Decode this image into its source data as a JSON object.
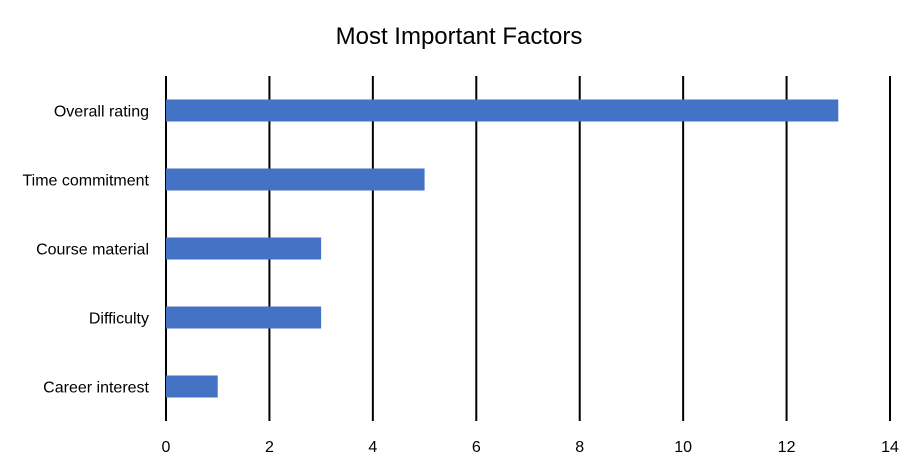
{
  "chart_data": {
    "type": "bar",
    "orientation": "horizontal",
    "title": "Most Important Factors",
    "xlabel": "",
    "ylabel": "",
    "categories": [
      "Overall rating",
      "Time commitment",
      "Course material",
      "Difficulty",
      "Career interest"
    ],
    "values": [
      13,
      5,
      3,
      3,
      1
    ],
    "xlim": [
      0,
      14
    ],
    "x_ticks": [
      0,
      2,
      4,
      6,
      8,
      10,
      12,
      14
    ],
    "grid": "vertical",
    "legend": "none",
    "bar_color": "#4472C4"
  }
}
